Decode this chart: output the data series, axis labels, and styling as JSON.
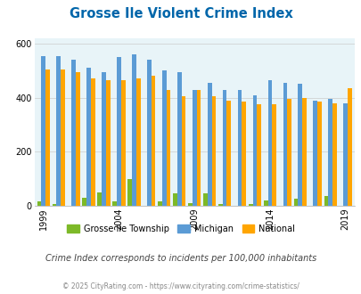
{
  "title": "Grosse Ile Violent Crime Index",
  "subtitle": "Crime Index corresponds to incidents per 100,000 inhabitants",
  "footer": "© 2025 CityRating.com - https://www.cityrating.com/crime-statistics/",
  "years": [
    1999,
    2000,
    2001,
    2002,
    2003,
    2004,
    2005,
    2006,
    2007,
    2008,
    2009,
    2010,
    2011,
    2012,
    2013,
    2014,
    2015,
    2016,
    2017,
    2018,
    2019
  ],
  "grosse_ile": [
    18,
    5,
    0,
    30,
    50,
    15,
    100,
    0,
    15,
    45,
    10,
    45,
    5,
    0,
    5,
    20,
    0,
    25,
    0,
    35,
    0
  ],
  "michigan": [
    555,
    555,
    540,
    510,
    495,
    550,
    560,
    540,
    500,
    495,
    430,
    455,
    430,
    430,
    410,
    465,
    455,
    450,
    390,
    395,
    380
  ],
  "national": [
    505,
    505,
    495,
    470,
    465,
    465,
    470,
    480,
    430,
    405,
    430,
    405,
    390,
    385,
    375,
    375,
    395,
    400,
    385,
    380,
    435
  ],
  "tick_years": [
    1999,
    2004,
    2009,
    2014,
    2019
  ],
  "ylim": [
    0,
    620
  ],
  "yticks": [
    0,
    200,
    400,
    600
  ],
  "bar_colors": {
    "grosse_ile": "#7db928",
    "michigan": "#5b9bd5",
    "national": "#ffa500"
  },
  "bg_color": "#e8f4f8",
  "title_color": "#0066aa",
  "subtitle_color": "#444444",
  "footer_color": "#888888"
}
